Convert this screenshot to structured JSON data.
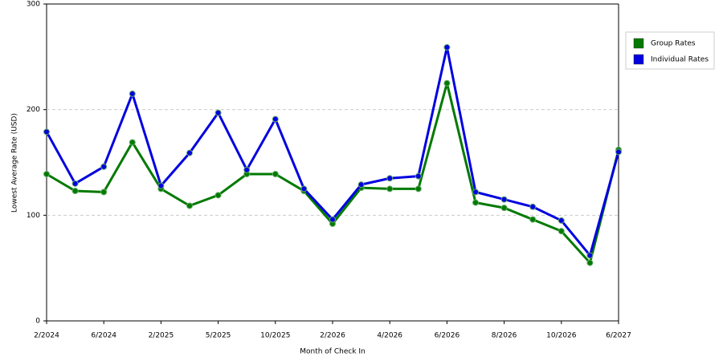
{
  "chart_data": {
    "type": "line",
    "x_label": "Month of Check In",
    "y_label": "Lowest Average Rate (USD)",
    "categories": [
      "2/2024",
      null,
      "6/2024",
      null,
      "2/2025",
      null,
      "5/2025",
      null,
      "10/2025",
      null,
      "2/2026",
      null,
      "4/2026",
      null,
      "6/2026",
      null,
      "8/2026",
      null,
      "10/2026",
      null,
      "6/2027"
    ],
    "series": [
      {
        "name": "Group Rates",
        "color": "#007a00",
        "values": [
          139,
          123,
          122,
          169,
          125,
          109,
          119,
          139,
          139,
          123,
          92,
          126,
          125,
          125,
          225,
          112,
          107,
          96,
          85,
          55,
          162
        ]
      },
      {
        "name": "Individual Rates",
        "color": "#0000e0",
        "values": [
          179,
          130,
          146,
          215,
          128,
          159,
          197,
          143,
          191,
          125,
          96,
          129,
          135,
          137,
          259,
          122,
          115,
          108,
          95,
          62,
          160
        ]
      }
    ],
    "ylim": [
      0,
      300
    ],
    "yticks": [
      0,
      100,
      200,
      300
    ],
    "grid": true,
    "legend": "right"
  }
}
